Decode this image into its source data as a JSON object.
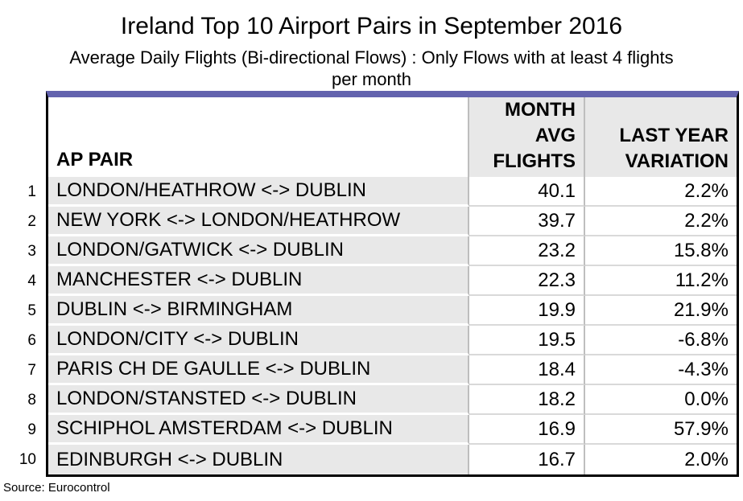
{
  "title": "Ireland Top 10 Airport Pairs in September 2016",
  "subtitle": {
    "line1": "Average Daily Flights (Bi-directional Flows) : Only Flows with at least 4 flights",
    "line2": "per month"
  },
  "source": "Source: Eurocontrol",
  "colors": {
    "table_top_accent": "#6363AE",
    "outer_border": "#000000",
    "cell_gray_fill": "#E8E8E8",
    "grid_line_gray": "#BEBEBE",
    "row_line_light_gray": "#D9D9D9",
    "row_line_white": "#FFFFFF",
    "text": "#000000"
  },
  "table": {
    "header": {
      "col1": "AP PAIR",
      "col2_line1": "MONTH",
      "col2_line2": "AVG",
      "col2_line3": "FLIGHTS",
      "col3_line1": "LAST YEAR",
      "col3_line2": "VARIATION"
    },
    "rows": [
      {
        "rank": "1",
        "pair": "LONDON/HEATHROW <-> DUBLIN",
        "flights": "40.1",
        "variation": "2.2%"
      },
      {
        "rank": "2",
        "pair": "NEW YORK <-> LONDON/HEATHROW",
        "flights": "39.7",
        "variation": "2.2%"
      },
      {
        "rank": "3",
        "pair": "LONDON/GATWICK <-> DUBLIN",
        "flights": "23.2",
        "variation": "15.8%"
      },
      {
        "rank": "4",
        "pair": "MANCHESTER <-> DUBLIN",
        "flights": "22.3",
        "variation": "11.2%"
      },
      {
        "rank": "5",
        "pair": "DUBLIN <-> BIRMINGHAM",
        "flights": "19.9",
        "variation": "21.9%"
      },
      {
        "rank": "6",
        "pair": "LONDON/CITY <-> DUBLIN",
        "flights": "19.5",
        "variation": "-6.8%"
      },
      {
        "rank": "7",
        "pair": "PARIS CH DE GAULLE <-> DUBLIN",
        "flights": "18.4",
        "variation": "-4.3%"
      },
      {
        "rank": "8",
        "pair": "LONDON/STANSTED <-> DUBLIN",
        "flights": "18.2",
        "variation": "0.0%"
      },
      {
        "rank": "9",
        "pair": "SCHIPHOL AMSTERDAM <-> DUBLIN",
        "flights": "16.9",
        "variation": "57.9%"
      },
      {
        "rank": "10",
        "pair": "EDINBURGH <-> DUBLIN",
        "flights": "16.7",
        "variation": "2.0%"
      }
    ]
  },
  "chart_data": {
    "type": "table",
    "title": "Ireland Top 10 Airport Pairs in September 2016",
    "subtitle": "Average Daily Flights (Bi-directional Flows) : Only Flows with at least 4 flights per month",
    "columns": [
      "AP PAIR",
      "MONTH AVG FLIGHTS",
      "LAST YEAR VARIATION"
    ],
    "rows": [
      {
        "rank": 1,
        "ap_pair": "LONDON/HEATHROW <-> DUBLIN",
        "month_avg_flights": 40.1,
        "last_year_variation_pct": 2.2
      },
      {
        "rank": 2,
        "ap_pair": "NEW YORK <-> LONDON/HEATHROW",
        "month_avg_flights": 39.7,
        "last_year_variation_pct": 2.2
      },
      {
        "rank": 3,
        "ap_pair": "LONDON/GATWICK <-> DUBLIN",
        "month_avg_flights": 23.2,
        "last_year_variation_pct": 15.8
      },
      {
        "rank": 4,
        "ap_pair": "MANCHESTER <-> DUBLIN",
        "month_avg_flights": 22.3,
        "last_year_variation_pct": 11.2
      },
      {
        "rank": 5,
        "ap_pair": "DUBLIN <-> BIRMINGHAM",
        "month_avg_flights": 19.9,
        "last_year_variation_pct": 21.9
      },
      {
        "rank": 6,
        "ap_pair": "LONDON/CITY <-> DUBLIN",
        "month_avg_flights": 19.5,
        "last_year_variation_pct": -6.8
      },
      {
        "rank": 7,
        "ap_pair": "PARIS CH DE GAULLE <-> DUBLIN",
        "month_avg_flights": 18.4,
        "last_year_variation_pct": -4.3
      },
      {
        "rank": 8,
        "ap_pair": "LONDON/STANSTED <-> DUBLIN",
        "month_avg_flights": 18.2,
        "last_year_variation_pct": 0.0
      },
      {
        "rank": 9,
        "ap_pair": "SCHIPHOL AMSTERDAM <-> DUBLIN",
        "month_avg_flights": 16.9,
        "last_year_variation_pct": 57.9
      },
      {
        "rank": 10,
        "ap_pair": "EDINBURGH <-> DUBLIN",
        "month_avg_flights": 16.7,
        "last_year_variation_pct": 2.0
      }
    ],
    "source": "Eurocontrol"
  }
}
